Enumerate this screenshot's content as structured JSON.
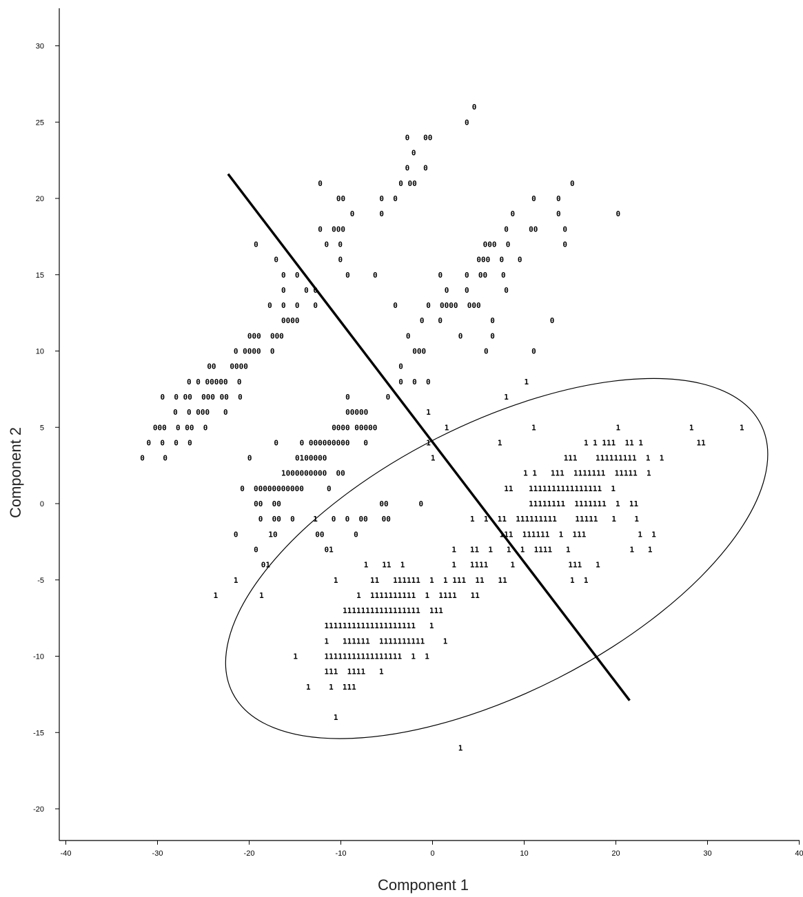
{
  "chart_data": {
    "type": "scatter",
    "title": "",
    "xlabel": "Component 1",
    "ylabel": "Component 2",
    "xlim": [
      -41,
      40
    ],
    "ylim": [
      -22,
      32
    ],
    "xticks": [
      -40,
      -30,
      -20,
      -10,
      0,
      10,
      20,
      30,
      40
    ],
    "yticks": [
      -20,
      -15,
      -10,
      -5,
      0,
      5,
      10,
      15,
      20,
      25,
      30
    ],
    "grid": false,
    "legend": "none",
    "point_markers": "class labels drawn as text glyphs",
    "classes": [
      "0",
      "1"
    ],
    "rows": [
      {
        "y": 26.0,
        "text": "0",
        "x": 4.3
      },
      {
        "y": 25.0,
        "text": "0",
        "x": 3.5
      },
      {
        "y": 24.0,
        "text": "0   00",
        "x": -3.0
      },
      {
        "y": 23.0,
        "text": "0",
        "x": -2.3
      },
      {
        "y": 22.0,
        "text": "0   0",
        "x": -3.0
      },
      {
        "y": 21.0,
        "text": "0",
        "x": -12.5
      },
      {
        "y": 21.0,
        "text": "0 00",
        "x": -3.7
      },
      {
        "y": 21.0,
        "text": "0",
        "x": 15.0
      },
      {
        "y": 20.0,
        "text": "00",
        "x": -10.5
      },
      {
        "y": 20.0,
        "text": "0  0",
        "x": -5.8
      },
      {
        "y": 20.0,
        "text": "0",
        "x": 10.8
      },
      {
        "y": 20.0,
        "text": "0",
        "x": 13.5
      },
      {
        "y": 19.0,
        "text": "0",
        "x": -9.0
      },
      {
        "y": 19.0,
        "text": "0",
        "x": -5.8
      },
      {
        "y": 19.0,
        "text": "0",
        "x": 8.5
      },
      {
        "y": 19.0,
        "text": "0",
        "x": 13.5
      },
      {
        "y": 19.0,
        "text": "0",
        "x": 20.0
      },
      {
        "y": 18.0,
        "text": "0  000",
        "x": -12.5
      },
      {
        "y": 18.0,
        "text": "0",
        "x": 7.8
      },
      {
        "y": 18.0,
        "text": "00",
        "x": 10.5
      },
      {
        "y": 18.0,
        "text": "0",
        "x": 14.2
      },
      {
        "y": 17.0,
        "text": "0",
        "x": -19.5
      },
      {
        "y": 17.0,
        "text": "0  0",
        "x": -11.8
      },
      {
        "y": 17.0,
        "text": "000  0",
        "x": 5.5
      },
      {
        "y": 17.0,
        "text": "0",
        "x": 14.2
      },
      {
        "y": 16.0,
        "text": "0",
        "x": -17.3
      },
      {
        "y": 16.0,
        "text": "0",
        "x": -10.3
      },
      {
        "y": 16.0,
        "text": "000  0   0",
        "x": 4.8
      },
      {
        "y": 15.0,
        "text": "0  0",
        "x": -16.5
      },
      {
        "y": 15.0,
        "text": "0",
        "x": -9.5
      },
      {
        "y": 15.0,
        "text": "0",
        "x": -6.5
      },
      {
        "y": 15.0,
        "text": "0",
        "x": 0.6
      },
      {
        "y": 15.0,
        "text": "0  00   0",
        "x": 3.5
      },
      {
        "y": 14.0,
        "text": "0    0 0",
        "x": -16.5
      },
      {
        "y": 14.0,
        "text": "0",
        "x": 1.3
      },
      {
        "y": 14.0,
        "text": "0",
        "x": 3.5
      },
      {
        "y": 14.0,
        "text": "0",
        "x": 7.8
      },
      {
        "y": 13.0,
        "text": "0  0  0   0",
        "x": -18.0
      },
      {
        "y": 13.0,
        "text": "0",
        "x": -4.3
      },
      {
        "y": 13.0,
        "text": "0  0000  000",
        "x": -0.7
      },
      {
        "y": 12.0,
        "text": "0000",
        "x": -16.5
      },
      {
        "y": 12.0,
        "text": "0   0",
        "x": -1.4
      },
      {
        "y": 12.0,
        "text": "0",
        "x": 6.3
      },
      {
        "y": 12.0,
        "text": "0",
        "x": 12.8
      },
      {
        "y": 11.0,
        "text": "000  000",
        "x": -20.2
      },
      {
        "y": 11.0,
        "text": "0",
        "x": -2.9
      },
      {
        "y": 11.0,
        "text": "0",
        "x": 2.8
      },
      {
        "y": 11.0,
        "text": "0",
        "x": 6.3
      },
      {
        "y": 10.0,
        "text": "0 0000  0",
        "x": -21.7
      },
      {
        "y": 10.0,
        "text": "000",
        "x": -2.2
      },
      {
        "y": 10.0,
        "text": "0",
        "x": 5.6
      },
      {
        "y": 10.0,
        "text": "0",
        "x": 10.8
      },
      {
        "y": 9.0,
        "text": "00   0000",
        "x": -24.6
      },
      {
        "y": 9.0,
        "text": "0",
        "x": -3.7
      },
      {
        "y": 8.0,
        "text": "0 0 00000  0",
        "x": -26.8
      },
      {
        "y": 8.0,
        "text": "0  0  0",
        "x": -3.7
      },
      {
        "y": 8.0,
        "text": "1",
        "x": 10.0
      },
      {
        "y": 7.0,
        "text": "0  0 00  000 00  0",
        "x": -29.7
      },
      {
        "y": 7.0,
        "text": "0",
        "x": -9.5
      },
      {
        "y": 7.0,
        "text": "0",
        "x": -5.1
      },
      {
        "y": 7.0,
        "text": "1",
        "x": 7.8
      },
      {
        "y": 6.0,
        "text": "0  0 000   0",
        "x": -28.3
      },
      {
        "y": 6.0,
        "text": "00000",
        "x": -9.5
      },
      {
        "y": 6.0,
        "text": "1",
        "x": -0.7
      },
      {
        "y": 5.0,
        "text": "000  0 00  0",
        "x": -30.5
      },
      {
        "y": 5.0,
        "text": "0000 00000",
        "x": -11.0
      },
      {
        "y": 5.0,
        "text": "1",
        "x": 1.3
      },
      {
        "y": 5.0,
        "text": "1",
        "x": 10.8
      },
      {
        "y": 5.0,
        "text": "1",
        "x": 20.0
      },
      {
        "y": 5.0,
        "text": "1",
        "x": 28.0
      },
      {
        "y": 5.0,
        "text": "1",
        "x": 33.5
      },
      {
        "y": 4.0,
        "text": "0  0  0  0",
        "x": -31.2
      },
      {
        "y": 4.0,
        "text": "0",
        "x": -17.3
      },
      {
        "y": 4.0,
        "text": "0 000000000   0",
        "x": -14.5
      },
      {
        "y": 4.0,
        "text": "1",
        "x": -0.7
      },
      {
        "y": 4.0,
        "text": "1",
        "x": 7.1
      },
      {
        "y": 4.0,
        "text": "1 1 111  11 1",
        "x": 16.5
      },
      {
        "y": 4.0,
        "text": "11",
        "x": 28.8
      },
      {
        "y": 3.0,
        "text": "0    0",
        "x": -31.9
      },
      {
        "y": 3.0,
        "text": "0",
        "x": -20.2
      },
      {
        "y": 3.0,
        "text": "0100000",
        "x": -15.0
      },
      {
        "y": 3.0,
        "text": "1",
        "x": -0.2
      },
      {
        "y": 3.0,
        "text": "111    111111111  1  1",
        "x": 14.3
      },
      {
        "y": 2.0,
        "text": "1000000000  00",
        "x": -16.5
      },
      {
        "y": 2.0,
        "text": "1 1   111  1111111  11111  1",
        "x": 9.9
      },
      {
        "y": 1.0,
        "text": "0  00000000000     0",
        "x": -21.0
      },
      {
        "y": 1.0,
        "text": "11",
        "x": 7.8
      },
      {
        "y": 1.0,
        "text": "1111111111111111  1",
        "x": 10.5
      },
      {
        "y": 0.0,
        "text": "00  00",
        "x": -19.5
      },
      {
        "y": 0.0,
        "text": "00",
        "x": -5.8
      },
      {
        "y": 0.0,
        "text": "0",
        "x": -1.5
      },
      {
        "y": 0.0,
        "text": "11111111  1111111  1  11",
        "x": 10.5
      },
      {
        "y": -1.0,
        "text": "0  00  0    1   0  0  00   00",
        "x": -19.0
      },
      {
        "y": -1.0,
        "text": "1  1  11  111111111    11111   1    1",
        "x": 4.1
      },
      {
        "y": -2.0,
        "text": "0",
        "x": -21.7
      },
      {
        "y": -2.0,
        "text": "10",
        "x": -17.9
      },
      {
        "y": -2.0,
        "text": "00",
        "x": -12.8
      },
      {
        "y": -2.0,
        "text": "0",
        "x": -8.6
      },
      {
        "y": -2.0,
        "text": "111  111111  1  111",
        "x": 7.3
      },
      {
        "y": -2.0,
        "text": "1  1",
        "x": 22.4
      },
      {
        "y": -3.0,
        "text": "0",
        "x": -19.5
      },
      {
        "y": -3.0,
        "text": "01",
        "x": -11.8
      },
      {
        "y": -3.0,
        "text": "1   11  1   1  1  1111   1",
        "x": 2.1
      },
      {
        "y": -3.0,
        "text": "1   1",
        "x": 21.5
      },
      {
        "y": -4.0,
        "text": "01",
        "x": -18.7
      },
      {
        "y": -4.0,
        "text": "1   11  1",
        "x": -7.5
      },
      {
        "y": -4.0,
        "text": "1   1111",
        "x": 2.1
      },
      {
        "y": -4.0,
        "text": "1",
        "x": 8.5
      },
      {
        "y": -4.0,
        "text": "111   1",
        "x": 14.8
      },
      {
        "y": -5.0,
        "text": "1",
        "x": -21.7
      },
      {
        "y": -5.0,
        "text": "1",
        "x": -10.8
      },
      {
        "y": -5.0,
        "text": "11   111111  1  1 111  11   11",
        "x": -6.8
      },
      {
        "y": -5.0,
        "text": "1  1",
        "x": 15.0
      },
      {
        "y": -6.0,
        "text": "1",
        "x": -23.9
      },
      {
        "y": -6.0,
        "text": "1",
        "x": -18.9
      },
      {
        "y": -6.0,
        "text": "1  1111111111  1  1111   11",
        "x": -8.3
      },
      {
        "y": -7.0,
        "text": "11111111111111111  111",
        "x": -9.8
      },
      {
        "y": -8.0,
        "text": "11111111111111111111   1",
        "x": -11.8
      },
      {
        "y": -9.0,
        "text": "1   111111  1111111111    1",
        "x": -11.8
      },
      {
        "y": -10.0,
        "text": "1",
        "x": -15.2
      },
      {
        "y": -10.0,
        "text": "11111111111111111  1  1",
        "x": -11.8
      },
      {
        "y": -11.0,
        "text": "111  1111   1",
        "x": -11.8
      },
      {
        "y": -12.0,
        "text": "1    1  111",
        "x": -13.8
      },
      {
        "y": -14.0,
        "text": "1",
        "x": -10.8
      },
      {
        "y": -16.0,
        "text": "1",
        "x": 2.8
      }
    ],
    "discriminant_line": {
      "x": [
        -22.3,
        21.5
      ],
      "y": [
        21.6,
        -12.9
      ]
    },
    "ellipse": {
      "center": [
        7.0,
        -3.6
      ],
      "semi_major": 32.3,
      "semi_minor": 8.8,
      "angle_deg": 27.0
    }
  }
}
